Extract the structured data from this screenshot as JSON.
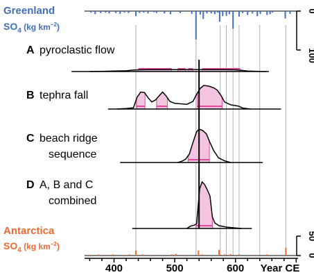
{
  "chart_data": {
    "type": "area",
    "xlabel": "Year CE",
    "x_ticks": [
      400,
      500,
      600
    ],
    "xlim": [
      360,
      470
    ],
    "colors": {
      "greenland": "#3f6fbd",
      "antarctica": "#ef6a2e",
      "hpd_fill": "#f2c4df",
      "hpd_line": "#e0489c",
      "curve": "#000000",
      "guide": "#b0b0b0"
    },
    "greenland": {
      "title": "Greenland",
      "unit_base": "SO",
      "unit_sub": "4",
      "unit_rest": "(kg km",
      "unit_sup": "−2",
      "unit_close": ")",
      "ticks": [
        "0",
        "100"
      ],
      "ylim": [
        0,
        100
      ],
      "spikes": [
        {
          "x": 362,
          "y": 4
        },
        {
          "x": 369,
          "y": 8
        },
        {
          "x": 378,
          "y": 5
        },
        {
          "x": 386,
          "y": 4
        },
        {
          "x": 392,
          "y": 6
        },
        {
          "x": 403,
          "y": 5
        },
        {
          "x": 410,
          "y": 7
        },
        {
          "x": 417,
          "y": 4
        },
        {
          "x": 424,
          "y": 5
        },
        {
          "x": 436,
          "y": 13
        },
        {
          "x": 442,
          "y": 5
        },
        {
          "x": 449,
          "y": 4
        },
        {
          "x": 456,
          "y": 6
        },
        {
          "x": 466,
          "y": 3
        },
        {
          "x": 470,
          "y": 5
        },
        {
          "x": 483,
          "y": 6
        },
        {
          "x": 493,
          "y": 8
        },
        {
          "x": 509,
          "y": 5
        },
        {
          "x": 528,
          "y": 7
        },
        {
          "x": 535,
          "y": 73
        },
        {
          "x": 542,
          "y": 9
        },
        {
          "x": 547,
          "y": 20
        },
        {
          "x": 553,
          "y": 6
        },
        {
          "x": 560,
          "y": 6
        },
        {
          "x": 566,
          "y": 8
        },
        {
          "x": 571,
          "y": 4
        },
        {
          "x": 574,
          "y": 27
        },
        {
          "x": 579,
          "y": 13
        },
        {
          "x": 585,
          "y": 12
        },
        {
          "x": 590,
          "y": 8
        },
        {
          "x": 596,
          "y": 45
        },
        {
          "x": 606,
          "y": 14
        },
        {
          "x": 612,
          "y": 5
        },
        {
          "x": 620,
          "y": 10
        },
        {
          "x": 628,
          "y": 6
        },
        {
          "x": 636,
          "y": 13
        },
        {
          "x": 641,
          "y": 7
        },
        {
          "x": 652,
          "y": 10
        },
        {
          "x": 657,
          "y": 8
        },
        {
          "x": 661,
          "y": 4
        },
        {
          "x": 682,
          "y": 19
        },
        {
          "x": 690,
          "y": 7
        }
      ]
    },
    "antarctica": {
      "title": "Antarctica",
      "unit_base": "SO",
      "unit_sub": "4",
      "unit_rest": "(kg km",
      "unit_sup": "−2",
      "unit_close": ")",
      "ticks": [
        "0",
        "50"
      ],
      "ylim": [
        0,
        50
      ],
      "spikes": [
        {
          "x": 362,
          "y": 2
        },
        {
          "x": 374,
          "y": 3
        },
        {
          "x": 388,
          "y": 2
        },
        {
          "x": 398,
          "y": 3
        },
        {
          "x": 415,
          "y": 2
        },
        {
          "x": 425,
          "y": 3
        },
        {
          "x": 436,
          "y": 13
        },
        {
          "x": 447,
          "y": 3
        },
        {
          "x": 466,
          "y": 2
        },
        {
          "x": 495,
          "y": 3
        },
        {
          "x": 502,
          "y": 4
        },
        {
          "x": 519,
          "y": 2
        },
        {
          "x": 539,
          "y": 13
        },
        {
          "x": 545,
          "y": 3
        },
        {
          "x": 573,
          "y": 15
        },
        {
          "x": 582,
          "y": 3
        },
        {
          "x": 592,
          "y": 4
        },
        {
          "x": 606,
          "y": 3
        },
        {
          "x": 631,
          "y": 2
        },
        {
          "x": 651,
          "y": 3
        },
        {
          "x": 683,
          "y": 20
        }
      ]
    },
    "reference_lines": [
      436,
      535,
      575,
      585,
      596,
      606,
      640,
      683
    ],
    "median_year": 540,
    "panels": [
      {
        "id": "A",
        "letter": "A",
        "label_lines": [
          "pyroclastic flow"
        ],
        "baseline_x": [
          330,
          655
        ],
        "hpd_segments": [
          [
            440,
            495
          ],
          [
            505,
            518
          ],
          [
            522,
            530
          ],
          [
            545,
            608
          ]
        ],
        "density": [
          [
            360,
            0
          ],
          [
            380,
            0.02
          ],
          [
            400,
            0.05
          ],
          [
            420,
            0.08
          ],
          [
            430,
            0.14
          ],
          [
            440,
            0.18
          ],
          [
            460,
            0.2
          ],
          [
            480,
            0.2
          ],
          [
            500,
            0.2
          ],
          [
            520,
            0.2
          ],
          [
            540,
            0.2
          ],
          [
            560,
            0.2
          ],
          [
            580,
            0.2
          ],
          [
            600,
            0.18
          ],
          [
            610,
            0.12
          ],
          [
            620,
            0.05
          ],
          [
            640,
            0.01
          ],
          [
            650,
            0
          ]
        ]
      },
      {
        "id": "B",
        "letter": "B",
        "label_lines": [
          "tephra fall"
        ],
        "baseline_x": [
          390,
          675
        ],
        "hpd_segments": [
          [
            437,
            451
          ],
          [
            470,
            488
          ],
          [
            537,
            578
          ]
        ],
        "density": [
          [
            405,
            0
          ],
          [
            420,
            0.02
          ],
          [
            432,
            0.05
          ],
          [
            438,
            0.5
          ],
          [
            444,
            0.72
          ],
          [
            450,
            0.7
          ],
          [
            456,
            0.48
          ],
          [
            462,
            0.3
          ],
          [
            468,
            0.38
          ],
          [
            474,
            0.55
          ],
          [
            480,
            0.72
          ],
          [
            486,
            0.55
          ],
          [
            492,
            0.32
          ],
          [
            500,
            0.24
          ],
          [
            510,
            0.22
          ],
          [
            520,
            0.2
          ],
          [
            530,
            0.32
          ],
          [
            536,
            0.62
          ],
          [
            542,
            0.88
          ],
          [
            548,
            1.0
          ],
          [
            556,
            0.97
          ],
          [
            564,
            0.9
          ],
          [
            570,
            0.8
          ],
          [
            576,
            0.58
          ],
          [
            582,
            0.3
          ],
          [
            592,
            0.18
          ],
          [
            605,
            0.12
          ],
          [
            612,
            0.04
          ],
          [
            625,
            0
          ]
        ]
      },
      {
        "id": "C",
        "letter": "C",
        "label_lines": [
          "beach ridge",
          "sequence"
        ],
        "baseline_x": [
          410,
          645
        ],
        "hpd_segments": [
          [
            522,
            557
          ]
        ],
        "density": [
          [
            505,
            0
          ],
          [
            512,
            0.04
          ],
          [
            518,
            0.1
          ],
          [
            524,
            0.25
          ],
          [
            530,
            0.6
          ],
          [
            536,
            0.92
          ],
          [
            540,
            1.0
          ],
          [
            546,
            0.96
          ],
          [
            552,
            0.86
          ],
          [
            558,
            0.6
          ],
          [
            564,
            0.36
          ],
          [
            572,
            0.14
          ],
          [
            582,
            0.05
          ],
          [
            592,
            0
          ]
        ]
      },
      {
        "id": "D",
        "letter": "D",
        "label_lines": [
          "A, B and C",
          "combined"
        ],
        "baseline_x": [
          430,
          627
        ],
        "hpd_segments": [
          [
            535,
            562
          ]
        ],
        "density": [
          [
            520,
            0
          ],
          [
            526,
            0.05
          ],
          [
            532,
            0.07
          ],
          [
            536,
            0.1
          ],
          [
            539,
            0.55
          ],
          [
            541,
            0.85
          ],
          [
            545,
            1.0
          ],
          [
            549,
            0.95
          ],
          [
            553,
            0.85
          ],
          [
            558,
            0.7
          ],
          [
            562,
            0.25
          ],
          [
            566,
            0.12
          ],
          [
            573,
            0.06
          ],
          [
            585,
            0.03
          ],
          [
            600,
            0.01
          ],
          [
            610,
            0
          ]
        ]
      }
    ]
  }
}
